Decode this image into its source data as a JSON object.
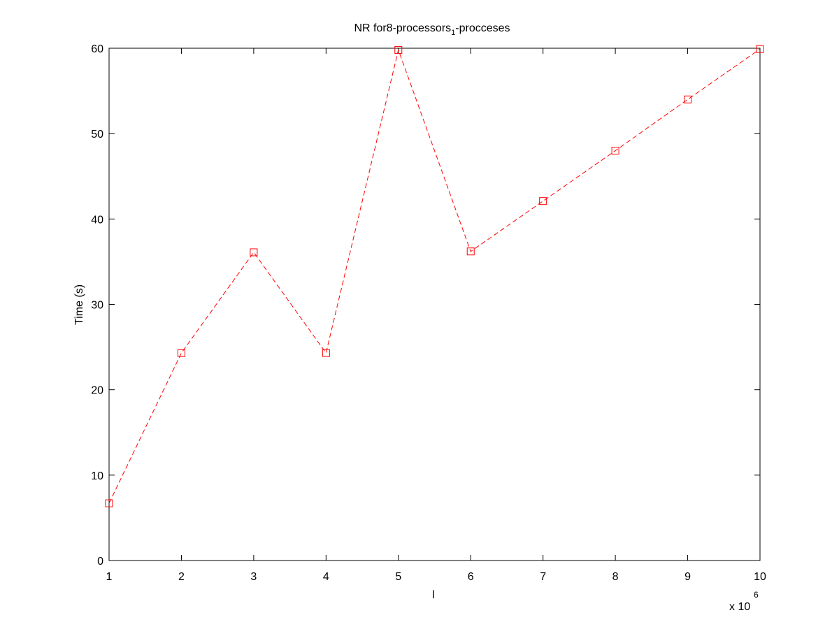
{
  "chart_data": {
    "type": "line",
    "title": {
      "main": "NR for8-processors",
      "subscript": "1",
      "suffix": "-procceses"
    },
    "xlabel": "l",
    "ylabel": "Time (s)",
    "x_multiplier": {
      "base": "x 10",
      "exponent": "6"
    },
    "xlim": [
      1,
      10
    ],
    "ylim": [
      0,
      60
    ],
    "x_ticks": [
      1,
      2,
      3,
      4,
      5,
      6,
      7,
      8,
      9,
      10
    ],
    "y_ticks": [
      0,
      10,
      20,
      30,
      40,
      50,
      60
    ],
    "grid": false,
    "series": [
      {
        "color": "#ff0000",
        "line_style": "dashed",
        "marker": "square",
        "x": [
          1,
          2,
          3,
          4,
          5,
          6,
          7,
          8,
          9,
          10
        ],
        "y": [
          6.7,
          24.3,
          36.1,
          24.3,
          59.8,
          36.2,
          42.1,
          48.0,
          54.0,
          59.9
        ]
      }
    ]
  }
}
